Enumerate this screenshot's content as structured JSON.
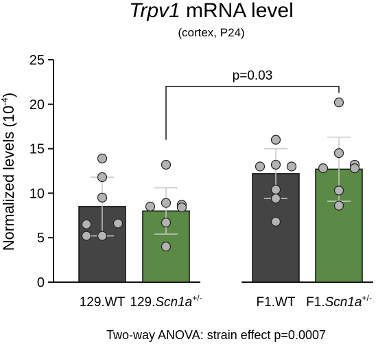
{
  "chart_data": {
    "type": "bar",
    "title": "Trpv1 mRNA level",
    "title_parts": [
      {
        "text": "Trpv1",
        "italic": true
      },
      {
        "text": " mRNA level",
        "italic": false
      }
    ],
    "subtitle": "(cortex, P24)",
    "ylabel": "Normalized levels (10",
    "ylabel_exponent": "-4",
    "ylabel_close": ")",
    "ylim": [
      0,
      25
    ],
    "yticks": [
      0,
      5,
      10,
      15,
      20,
      25
    ],
    "categories": [
      "129.WT",
      "129.Scn1a+/-",
      "F1.WT",
      "F1.Scn1a+/-"
    ],
    "category_parts": [
      [
        {
          "text": "129.WT",
          "italic": false
        }
      ],
      [
        {
          "text": "129.",
          "italic": false
        },
        {
          "text": "Scn1a",
          "italic": true
        },
        {
          "text": "+/-",
          "sup": true
        }
      ],
      [
        {
          "text": "F1.WT",
          "italic": false
        }
      ],
      [
        {
          "text": "F1.",
          "italic": false
        },
        {
          "text": "Scn1a",
          "italic": true
        },
        {
          "text": "+/-",
          "sup": true
        }
      ]
    ],
    "values": [
      8.5,
      8.0,
      12.2,
      12.7
    ],
    "errors": [
      3.3,
      2.6,
      2.8,
      3.6
    ],
    "bar_colors": [
      "#444444",
      "#5a8a45",
      "#444444",
      "#5a8a45"
    ],
    "points": [
      [
        13.9,
        11.8,
        9.5,
        6.5,
        6.6,
        5.2,
        5.2
      ],
      [
        13.2,
        8.9,
        8.7,
        8.5,
        8.4,
        6.7,
        4.0
      ],
      [
        16.0,
        13.2,
        13.0,
        13.0,
        10.4,
        9.4,
        6.8
      ],
      [
        20.2,
        14.5,
        13.2,
        12.8,
        12.8,
        10.3,
        8.6
      ]
    ],
    "point_color": "#b3b3b3",
    "annotation": {
      "text": "p=0.03",
      "from": 1,
      "to": 3,
      "level": 22.0
    },
    "footer": "Two-way ANOVA: strain effect p=0.0007",
    "grid": false
  }
}
